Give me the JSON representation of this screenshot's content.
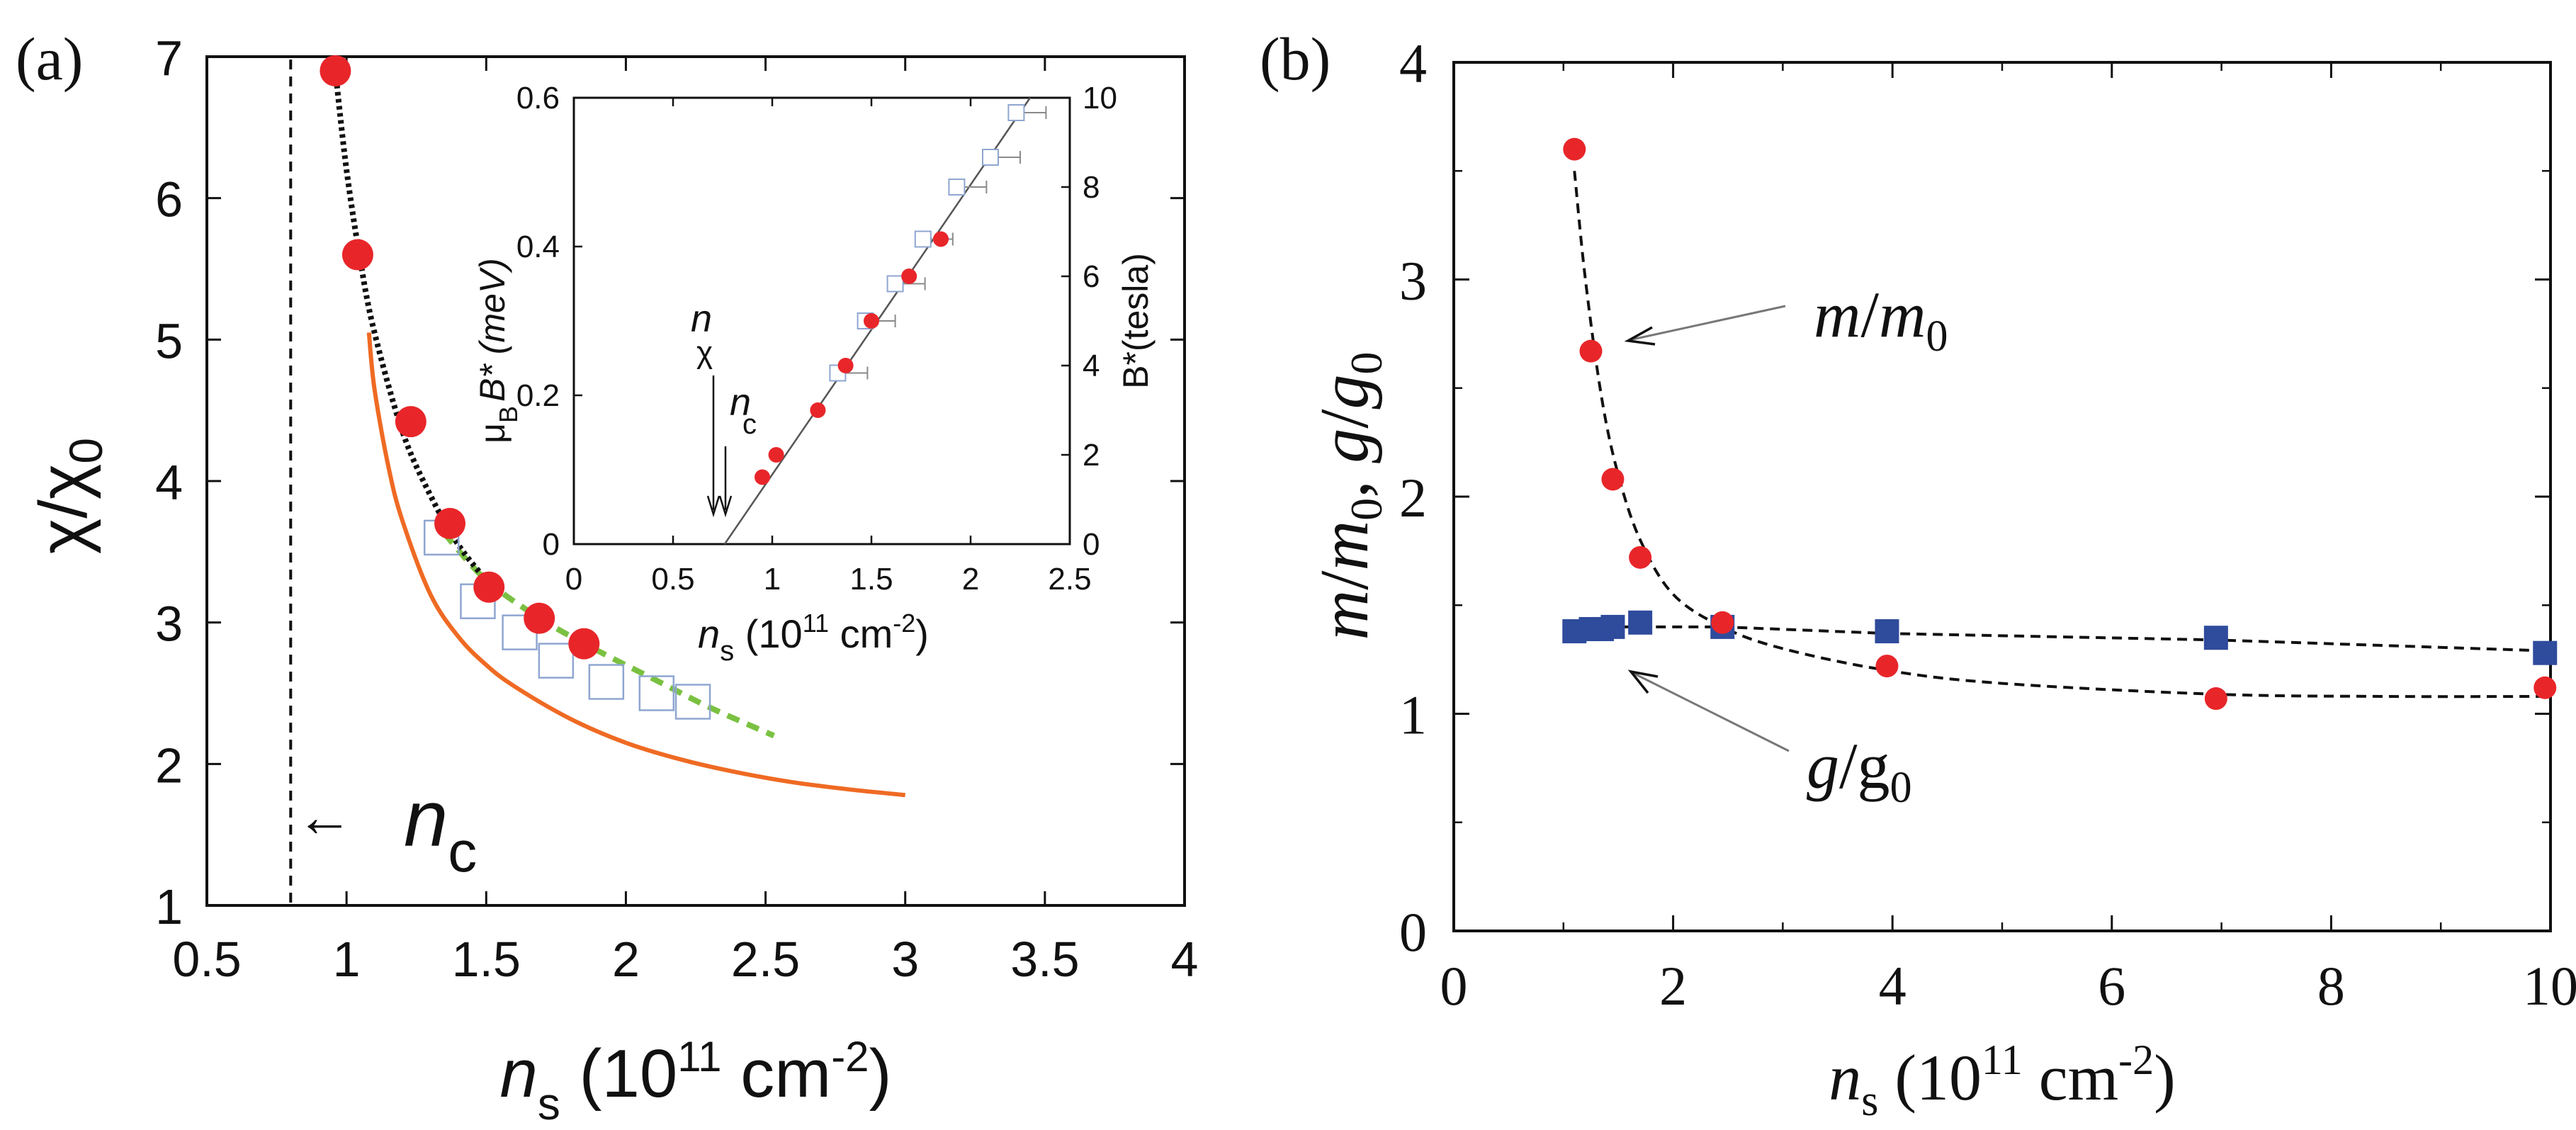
{
  "panel_labels": {
    "a": "(a)",
    "b": "(b)"
  },
  "colors": {
    "red": "#e8262a",
    "blue": "#2e4b9c",
    "orange": "#ef6a23",
    "green": "#7ac142",
    "open_square": "#8fa6d1",
    "black": "#111111"
  },
  "chart_data": [
    {
      "id": "panel-a-main",
      "type": "scatter",
      "xlim": [
        0.5,
        4
      ],
      "ylim": [
        1,
        7
      ],
      "xticks": [
        "0.5",
        "1",
        "1.5",
        "2",
        "2.5",
        "3",
        "3.5",
        "4"
      ],
      "yticks": [
        "1",
        "2",
        "3",
        "4",
        "5",
        "6",
        "7"
      ],
      "xticks_values": [
        0.5,
        1,
        1.5,
        2,
        2.5,
        3,
        3.5,
        4
      ],
      "yticks_values": [
        1,
        2,
        3,
        4,
        5,
        6,
        7
      ],
      "xlabel": {
        "main": "n",
        "sub": "s",
        "paren": " (10",
        "sup": "11",
        "unit": " cm",
        "unitsup": "-2",
        "close": ")"
      },
      "ylabel": {
        "chi": "χ/χ",
        "sub": "0"
      },
      "nc_annotation": {
        "arrow": "←",
        "n": "n",
        "sub": "c"
      },
      "nc_line_x": 0.8,
      "series": [
        {
          "name": "red dots",
          "marker": "filled-circle",
          "x": [
            0.96,
            1.04,
            1.23,
            1.37,
            1.51,
            1.69,
            1.85
          ],
          "y": [
            6.9,
            5.6,
            4.42,
            3.7,
            3.25,
            3.03,
            2.85
          ]
        },
        {
          "name": "open squares",
          "marker": "open-square",
          "x": [
            1.34,
            1.47,
            1.62,
            1.75,
            1.93,
            2.11,
            2.24
          ],
          "y": [
            3.6,
            3.15,
            2.93,
            2.73,
            2.58,
            2.5,
            2.44
          ]
        },
        {
          "name": "black dotted fit",
          "style": "dotted",
          "x": [
            0.96,
            1.0,
            1.05,
            1.1,
            1.2,
            1.3,
            1.4,
            1.5
          ],
          "y": [
            6.9,
            6.2,
            5.55,
            5.05,
            4.35,
            3.9,
            3.55,
            3.3
          ]
        },
        {
          "name": "orange curve",
          "style": "solid",
          "x": [
            1.08,
            1.1,
            1.15,
            1.2,
            1.3,
            1.4,
            1.5,
            1.6,
            1.8,
            2.0,
            2.2,
            2.4,
            2.6,
            2.8,
            3.0
          ],
          "y": [
            5.05,
            4.65,
            4.1,
            3.72,
            3.2,
            2.9,
            2.7,
            2.55,
            2.32,
            2.15,
            2.03,
            1.94,
            1.87,
            1.82,
            1.78
          ]
        },
        {
          "name": "green dashed",
          "style": "dashed",
          "x": [
            1.35,
            1.5,
            1.7,
            1.9,
            2.1,
            2.3,
            2.53
          ],
          "y": [
            3.63,
            3.3,
            3.02,
            2.8,
            2.6,
            2.4,
            2.2
          ]
        }
      ]
    },
    {
      "id": "panel-a-inset",
      "type": "scatter",
      "xlim": [
        0,
        2.5
      ],
      "ylim": [
        0,
        0.6
      ],
      "y2lim": [
        0,
        10
      ],
      "xticks": [
        "0",
        "0.5",
        "1",
        "1.5",
        "2",
        "2.5"
      ],
      "yticks": [
        "0",
        "0.2",
        "0.4",
        "0.6"
      ],
      "y2ticks": [
        "0",
        "2",
        "4",
        "6",
        "8",
        "10"
      ],
      "xticks_values": [
        0,
        0.5,
        1,
        1.5,
        2,
        2.5
      ],
      "yticks_values": [
        0,
        0.2,
        0.4,
        0.6
      ],
      "y2ticks_values": [
        0,
        2,
        4,
        6,
        8,
        10
      ],
      "xlabel": {
        "main": "n",
        "sub": "s",
        "paren": " (10",
        "sup": "11",
        "unit": " cm",
        "unitsup": "-2",
        "close": ")"
      },
      "ylabel": {
        "mu": "μ",
        "sub": "B",
        "rest": "B* (meV)"
      },
      "y2label": "B*(tesla)",
      "annotations": {
        "nchi": "n",
        "nchi_sub": "χ",
        "nc": "n",
        "nc_sub": "c"
      },
      "fit_line": {
        "x": [
          0.76,
          2.3
        ],
        "y": [
          0,
          0.6
        ]
      },
      "series": [
        {
          "name": "red dots",
          "marker": "filled-circle",
          "x": [
            0.95,
            1.02,
            1.23,
            1.37,
            1.5,
            1.69,
            1.85
          ],
          "y": [
            0.09,
            0.12,
            0.18,
            0.24,
            0.3,
            0.36,
            0.41
          ]
        },
        {
          "name": "open squares",
          "marker": "open-square",
          "x": [
            1.33,
            1.47,
            1.62,
            1.76,
            1.93,
            2.1,
            2.23
          ],
          "y": [
            0.23,
            0.3,
            0.35,
            0.41,
            0.48,
            0.52,
            0.58
          ]
        }
      ]
    },
    {
      "id": "panel-b",
      "type": "scatter",
      "xlim": [
        0,
        10
      ],
      "ylim": [
        0,
        4
      ],
      "xticks": [
        "0",
        "2",
        "4",
        "6",
        "8",
        "10"
      ],
      "yticks": [
        "0",
        "1",
        "2",
        "3",
        "4"
      ],
      "xticks_values": [
        0,
        2,
        4,
        6,
        8,
        10
      ],
      "yticks_values": [
        0,
        1,
        2,
        3,
        4
      ],
      "xlabel": {
        "main": "n",
        "sub": "s",
        "paren": " (10",
        "sup": "11",
        "unit": " cm",
        "unitsup": "-2",
        "close": ")"
      },
      "ylabel": {
        "m": "m",
        "slash": "/",
        "m0": "m",
        "sub0": "0",
        "comma": ", ",
        "g": "g",
        "slash2": "/",
        "g0": "g",
        "sub0b": "0"
      },
      "labels": {
        "mm0": {
          "m": "m",
          "slash": "/",
          "m0": "m",
          "sub": "0"
        },
        "gg0": {
          "g": "g",
          "slash": "/g",
          "sub": "0"
        }
      },
      "series": [
        {
          "name": "m/m0",
          "marker": "filled-circle",
          "x": [
            1.1,
            1.25,
            1.45,
            1.7,
            2.45,
            3.95,
            6.95,
            9.95
          ],
          "y": [
            3.6,
            2.67,
            2.08,
            1.72,
            1.42,
            1.22,
            1.07,
            1.12
          ]
        },
        {
          "name": "g/g0",
          "marker": "filled-square",
          "x": [
            1.1,
            1.25,
            1.35,
            1.45,
            1.7,
            2.45,
            3.95,
            6.95,
            9.95
          ],
          "y": [
            1.38,
            1.39,
            1.39,
            1.4,
            1.42,
            1.4,
            1.38,
            1.35,
            1.28
          ]
        },
        {
          "name": "m/m0 fit",
          "style": "dashed",
          "x": [
            1.1,
            1.2,
            1.35,
            1.5,
            1.7,
            2.0,
            2.45,
            3.0,
            3.95,
            5.0,
            6.95,
            8.5,
            9.95
          ],
          "y": [
            3.5,
            3.0,
            2.45,
            2.1,
            1.8,
            1.55,
            1.4,
            1.3,
            1.2,
            1.14,
            1.09,
            1.08,
            1.08
          ]
        },
        {
          "name": "g/g0 fit",
          "style": "dashed",
          "x": [
            1.1,
            2.45,
            3.95,
            6.95,
            9.95
          ],
          "y": [
            1.4,
            1.4,
            1.37,
            1.34,
            1.29
          ]
        }
      ]
    }
  ]
}
